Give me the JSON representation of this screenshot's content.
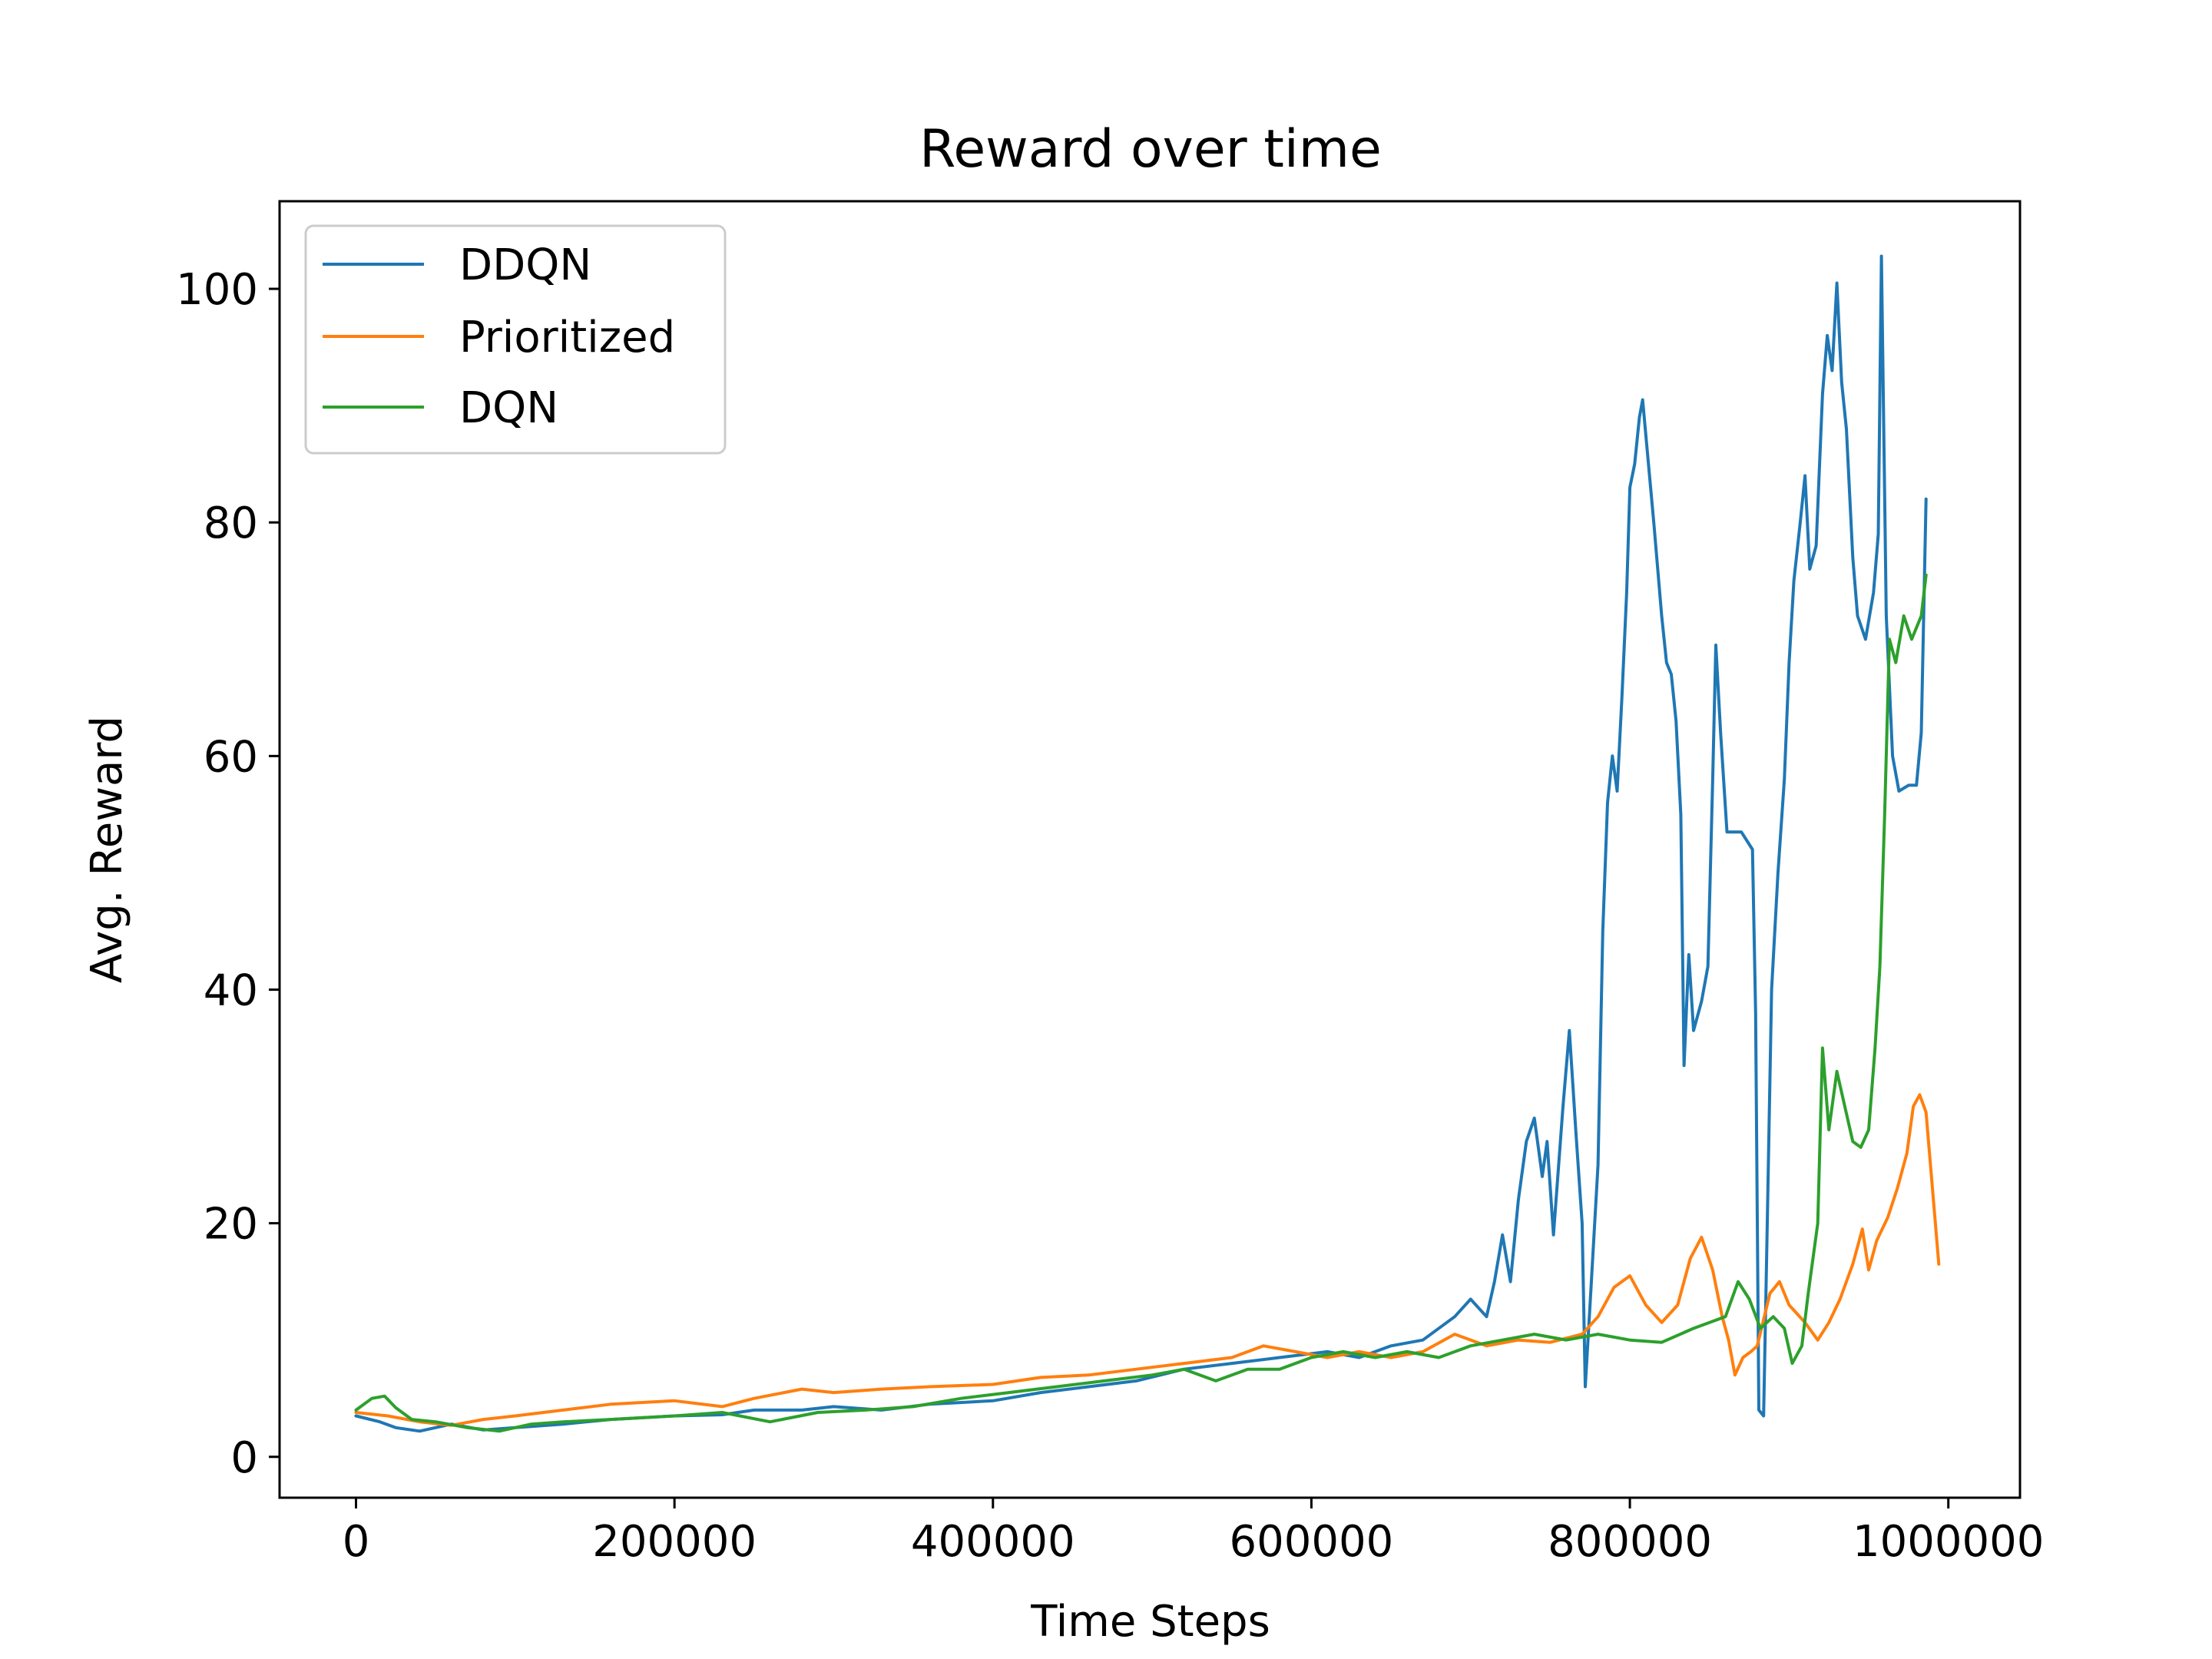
{
  "chart_data": {
    "type": "line",
    "title": "Reward over time",
    "xlabel": "Time Steps",
    "ylabel": "Avg. Reward",
    "xlim": [
      -48000,
      1045000
    ],
    "ylim": [
      -3.5,
      107.5
    ],
    "xticks": [
      0,
      200000,
      400000,
      600000,
      800000,
      1000000
    ],
    "xtick_labels": [
      "0",
      "200000",
      "400000",
      "600000",
      "800000",
      "1000000"
    ],
    "yticks": [
      0,
      20,
      40,
      60,
      80,
      100
    ],
    "ytick_labels": [
      "0",
      "20",
      "40",
      "60",
      "80",
      "100"
    ],
    "grid": false,
    "legend": "upper-left",
    "series": [
      {
        "name": "DDQN",
        "color": "#1f77b4",
        "points": [
          [
            0,
            3.5
          ],
          [
            15000,
            3.0
          ],
          [
            25000,
            2.5
          ],
          [
            40000,
            2.2
          ],
          [
            60000,
            2.8
          ],
          [
            80000,
            2.3
          ],
          [
            100000,
            2.5
          ],
          [
            130000,
            2.8
          ],
          [
            160000,
            3.2
          ],
          [
            200000,
            3.5
          ],
          [
            230000,
            3.6
          ],
          [
            250000,
            4.0
          ],
          [
            280000,
            4.0
          ],
          [
            300000,
            4.3
          ],
          [
            330000,
            4.0
          ],
          [
            360000,
            4.5
          ],
          [
            400000,
            4.8
          ],
          [
            430000,
            5.5
          ],
          [
            460000,
            6.0
          ],
          [
            490000,
            6.5
          ],
          [
            520000,
            7.5
          ],
          [
            550000,
            8.0
          ],
          [
            580000,
            8.5
          ],
          [
            610000,
            9.0
          ],
          [
            630000,
            8.5
          ],
          [
            650000,
            9.5
          ],
          [
            670000,
            10.0
          ],
          [
            690000,
            12.0
          ],
          [
            700000,
            13.5
          ],
          [
            710000,
            12.0
          ],
          [
            715000,
            15.0
          ],
          [
            720000,
            19.0
          ],
          [
            725000,
            15.0
          ],
          [
            730000,
            22.0
          ],
          [
            735000,
            27.0
          ],
          [
            740000,
            29.0
          ],
          [
            745000,
            24.0
          ],
          [
            748000,
            27.0
          ],
          [
            752000,
            19.0
          ],
          [
            758000,
            30.0
          ],
          [
            762000,
            36.5
          ],
          [
            766000,
            28.0
          ],
          [
            770000,
            20.0
          ],
          [
            772000,
            6.0
          ],
          [
            775000,
            13.0
          ],
          [
            780000,
            25.0
          ],
          [
            783000,
            45.0
          ],
          [
            786000,
            56.0
          ],
          [
            789000,
            60.0
          ],
          [
            792000,
            57.0
          ],
          [
            795000,
            65.0
          ],
          [
            798000,
            74.0
          ],
          [
            800000,
            83.0
          ],
          [
            803000,
            85.0
          ],
          [
            806000,
            89.0
          ],
          [
            808000,
            90.5
          ],
          [
            811000,
            86.0
          ],
          [
            815000,
            80.0
          ],
          [
            820000,
            72.0
          ],
          [
            823000,
            68.0
          ],
          [
            826000,
            67.0
          ],
          [
            829000,
            63.0
          ],
          [
            832000,
            55.0
          ],
          [
            834000,
            33.5
          ],
          [
            837000,
            43.0
          ],
          [
            840000,
            36.5
          ],
          [
            845000,
            39.0
          ],
          [
            849000,
            42.0
          ],
          [
            852000,
            58.0
          ],
          [
            854000,
            69.5
          ],
          [
            857000,
            62.0
          ],
          [
            861000,
            53.5
          ],
          [
            870000,
            53.5
          ],
          [
            877000,
            52.0
          ],
          [
            879000,
            38.0
          ],
          [
            881000,
            4.0
          ],
          [
            884000,
            3.5
          ],
          [
            886000,
            18.0
          ],
          [
            889000,
            40.0
          ],
          [
            893000,
            50.0
          ],
          [
            897000,
            58.0
          ],
          [
            900000,
            68.0
          ],
          [
            903000,
            75.0
          ],
          [
            907000,
            80.0
          ],
          [
            910000,
            84.0
          ],
          [
            913000,
            76.0
          ],
          [
            917000,
            78.0
          ],
          [
            921000,
            91.0
          ],
          [
            924000,
            96.0
          ],
          [
            927000,
            93.0
          ],
          [
            930000,
            100.5
          ],
          [
            933000,
            92.0
          ],
          [
            936000,
            88.0
          ],
          [
            940000,
            77.0
          ],
          [
            943000,
            72.0
          ],
          [
            948000,
            70.0
          ],
          [
            953000,
            74.0
          ],
          [
            956000,
            79.0
          ],
          [
            958000,
            102.8
          ],
          [
            961000,
            72.0
          ],
          [
            965000,
            60.0
          ],
          [
            969000,
            57.0
          ],
          [
            975000,
            57.5
          ],
          [
            980000,
            57.5
          ],
          [
            983000,
            62.0
          ],
          [
            986000,
            82.0
          ]
        ]
      },
      {
        "name": "Prioritized",
        "color": "#ff7f0e",
        "points": [
          [
            0,
            3.8
          ],
          [
            20000,
            3.5
          ],
          [
            40000,
            3.0
          ],
          [
            60000,
            2.7
          ],
          [
            80000,
            3.2
          ],
          [
            100000,
            3.5
          ],
          [
            130000,
            4.0
          ],
          [
            160000,
            4.5
          ],
          [
            200000,
            4.8
          ],
          [
            230000,
            4.3
          ],
          [
            250000,
            5.0
          ],
          [
            280000,
            5.8
          ],
          [
            300000,
            5.5
          ],
          [
            330000,
            5.8
          ],
          [
            360000,
            6.0
          ],
          [
            400000,
            6.2
          ],
          [
            430000,
            6.8
          ],
          [
            460000,
            7.0
          ],
          [
            490000,
            7.5
          ],
          [
            520000,
            8.0
          ],
          [
            550000,
            8.5
          ],
          [
            570000,
            9.5
          ],
          [
            590000,
            9.0
          ],
          [
            610000,
            8.5
          ],
          [
            630000,
            9.0
          ],
          [
            650000,
            8.5
          ],
          [
            670000,
            9.0
          ],
          [
            690000,
            10.5
          ],
          [
            710000,
            9.5
          ],
          [
            730000,
            10.0
          ],
          [
            750000,
            9.8
          ],
          [
            770000,
            10.5
          ],
          [
            780000,
            12.0
          ],
          [
            790000,
            14.5
          ],
          [
            800000,
            15.5
          ],
          [
            810000,
            13.0
          ],
          [
            820000,
            11.5
          ],
          [
            830000,
            13.0
          ],
          [
            838000,
            17.0
          ],
          [
            845000,
            18.8
          ],
          [
            852000,
            16.0
          ],
          [
            858000,
            12.0
          ],
          [
            862000,
            10.0
          ],
          [
            866000,
            7.0
          ],
          [
            871000,
            8.5
          ],
          [
            876000,
            9.0
          ],
          [
            880000,
            9.5
          ],
          [
            888000,
            14.0
          ],
          [
            894000,
            15.0
          ],
          [
            900000,
            13.0
          ],
          [
            910000,
            11.5
          ],
          [
            918000,
            10.0
          ],
          [
            925000,
            11.5
          ],
          [
            932000,
            13.5
          ],
          [
            940000,
            16.5
          ],
          [
            946000,
            19.5
          ],
          [
            950000,
            16.0
          ],
          [
            955000,
            18.5
          ],
          [
            962000,
            20.5
          ],
          [
            968000,
            23.0
          ],
          [
            974000,
            26.0
          ],
          [
            978000,
            30.0
          ],
          [
            982000,
            31.0
          ],
          [
            986000,
            29.5
          ],
          [
            990000,
            23.0
          ],
          [
            994000,
            16.5
          ]
        ]
      },
      {
        "name": "DQN",
        "color": "#2ca02c",
        "points": [
          [
            0,
            4.0
          ],
          [
            10000,
            5.0
          ],
          [
            18000,
            5.2
          ],
          [
            25000,
            4.2
          ],
          [
            35000,
            3.2
          ],
          [
            50000,
            3.0
          ],
          [
            70000,
            2.5
          ],
          [
            90000,
            2.2
          ],
          [
            110000,
            2.8
          ],
          [
            130000,
            3.0
          ],
          [
            160000,
            3.2
          ],
          [
            200000,
            3.5
          ],
          [
            230000,
            3.8
          ],
          [
            260000,
            3.0
          ],
          [
            290000,
            3.8
          ],
          [
            320000,
            4.0
          ],
          [
            350000,
            4.3
          ],
          [
            380000,
            5.0
          ],
          [
            410000,
            5.5
          ],
          [
            440000,
            6.0
          ],
          [
            470000,
            6.5
          ],
          [
            500000,
            7.0
          ],
          [
            520000,
            7.5
          ],
          [
            540000,
            6.5
          ],
          [
            560000,
            7.5
          ],
          [
            580000,
            7.5
          ],
          [
            600000,
            8.5
          ],
          [
            620000,
            9.0
          ],
          [
            640000,
            8.5
          ],
          [
            660000,
            9.0
          ],
          [
            680000,
            8.5
          ],
          [
            700000,
            9.5
          ],
          [
            720000,
            10.0
          ],
          [
            740000,
            10.5
          ],
          [
            760000,
            10.0
          ],
          [
            780000,
            10.5
          ],
          [
            800000,
            10.0
          ],
          [
            820000,
            9.8
          ],
          [
            840000,
            11.0
          ],
          [
            860000,
            12.0
          ],
          [
            868000,
            15.0
          ],
          [
            875000,
            13.5
          ],
          [
            882000,
            11.0
          ],
          [
            890000,
            12.0
          ],
          [
            897000,
            11.0
          ],
          [
            902000,
            8.0
          ],
          [
            908000,
            9.5
          ],
          [
            912000,
            14.0
          ],
          [
            918000,
            20.0
          ],
          [
            921000,
            35.0
          ],
          [
            925000,
            28.0
          ],
          [
            930000,
            33.0
          ],
          [
            935000,
            30.0
          ],
          [
            940000,
            27.0
          ],
          [
            945000,
            26.5
          ],
          [
            950000,
            28.0
          ],
          [
            954000,
            35.0
          ],
          [
            957000,
            42.0
          ],
          [
            960000,
            55.0
          ],
          [
            963000,
            70.0
          ],
          [
            967000,
            68.0
          ],
          [
            972000,
            72.0
          ],
          [
            977000,
            70.0
          ],
          [
            983000,
            72.0
          ],
          [
            986000,
            75.5
          ]
        ]
      }
    ]
  }
}
